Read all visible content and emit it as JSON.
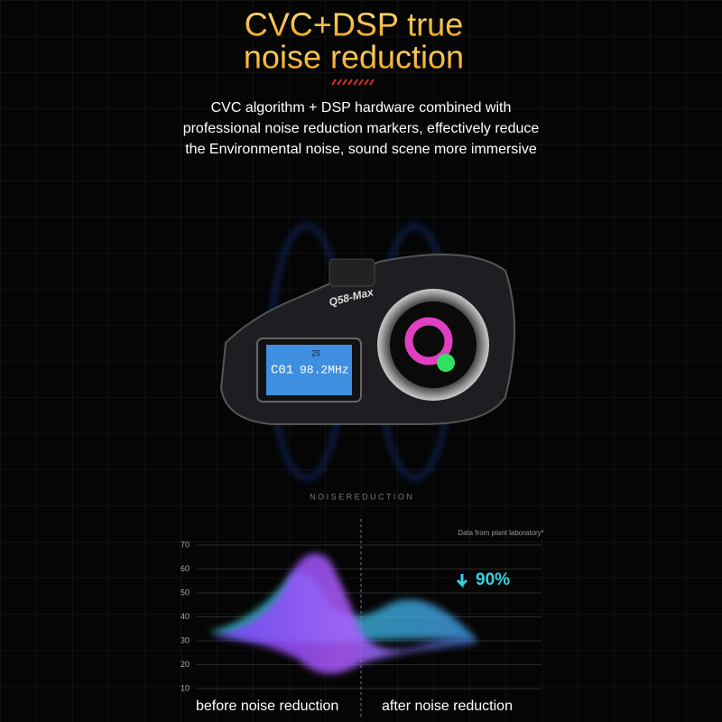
{
  "header": {
    "title_line1": "CVC+DSP true",
    "title_line2": "noise reduction",
    "description": [
      "CVC algorithm + DSP hardware combined with",
      "professional noise reduction markers, effectively reduce",
      "the Environmental noise, sound scene more immersive"
    ]
  },
  "device": {
    "model": "Q58-Max",
    "lcd_volume": "25",
    "lcd_channel": "C01",
    "lcd_frequency": "98.2MHz"
  },
  "noise_chart": {
    "section_title": "N O I S E   R E D U C T I O N",
    "source_note": "Data from plant laboratory*",
    "yticks": [
      70,
      60,
      50,
      40,
      30,
      20,
      10
    ],
    "reduction": "90%",
    "before_label": "before noise reduction",
    "after_label": "after noise reduction"
  }
}
